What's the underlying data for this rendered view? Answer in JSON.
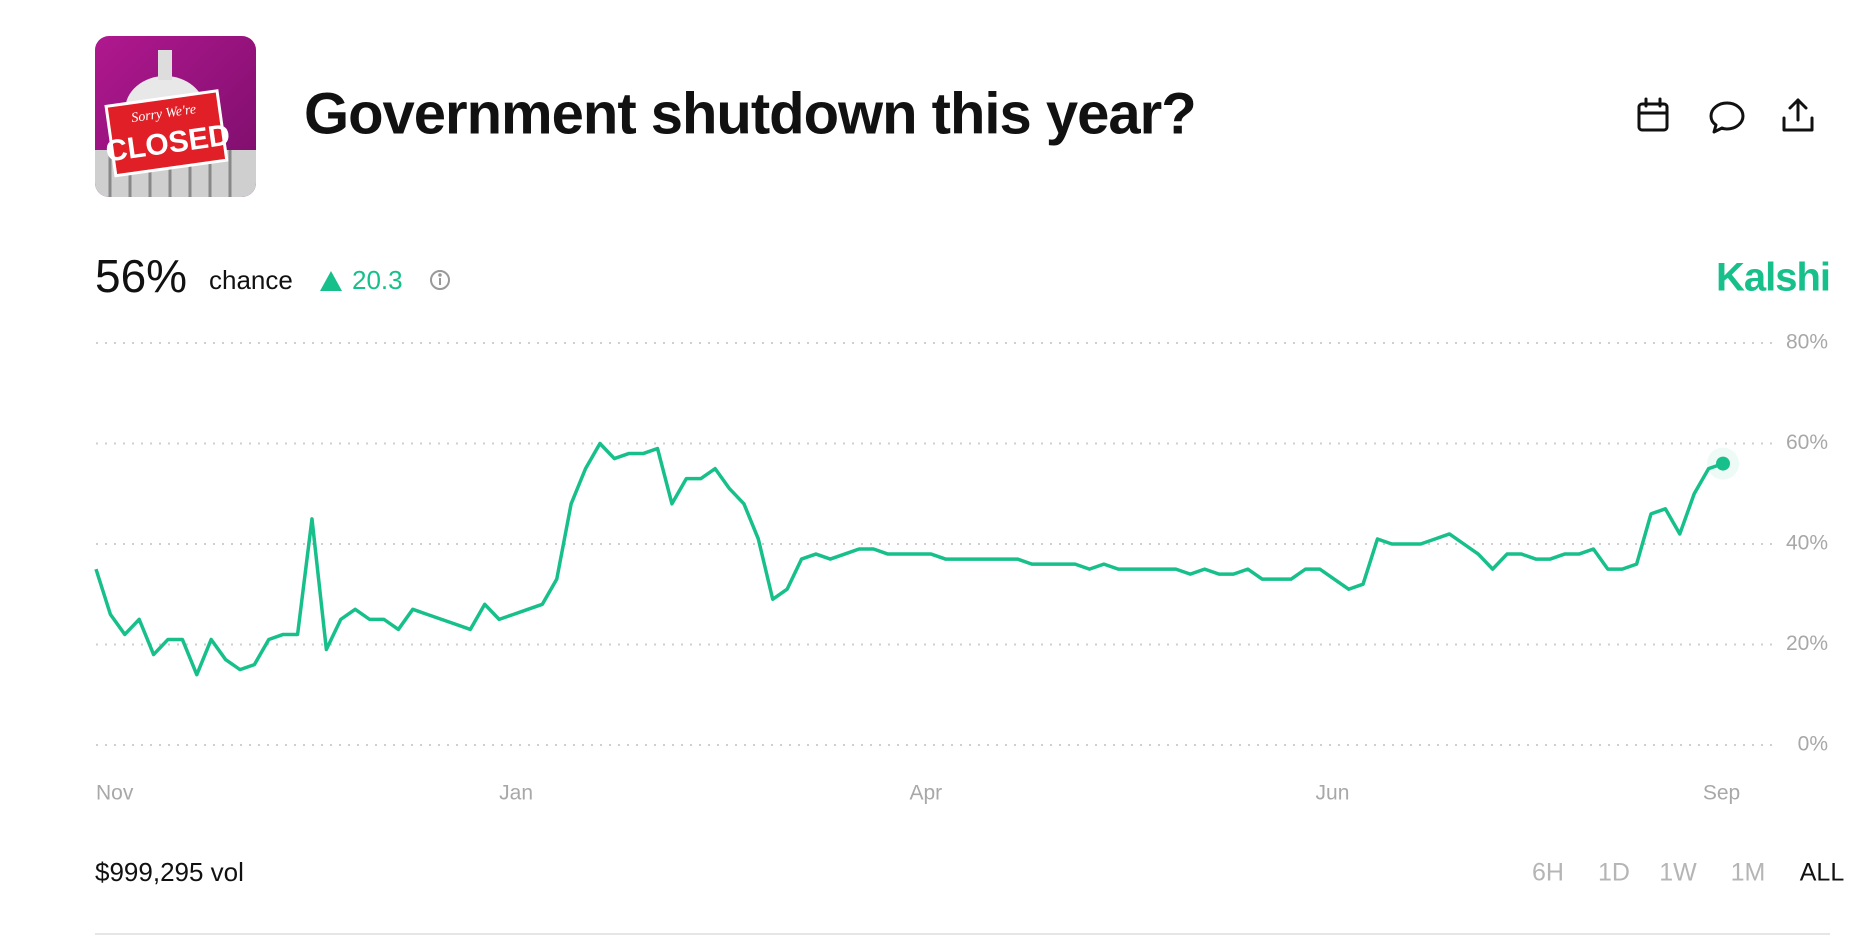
{
  "header": {
    "title": "Government shutdown this year?",
    "image_sign": [
      "Sorry We're",
      "CLOSED"
    ]
  },
  "summary": {
    "chance": "56%",
    "chance_label": "chance",
    "change": "20.3",
    "source": "Kalshi"
  },
  "footer": {
    "volume": "$999,295 vol",
    "ranges": [
      "6H",
      "1D",
      "1W",
      "1M",
      "ALL"
    ]
  },
  "chart_data": {
    "type": "line",
    "color": "#17c08a",
    "values": [
      35,
      26,
      22,
      25,
      18,
      21,
      21,
      14,
      21,
      17,
      15,
      16,
      21,
      22,
      22,
      45,
      19,
      25,
      27,
      25,
      25,
      23,
      27,
      26,
      25,
      24,
      23,
      28,
      25,
      26,
      27,
      28,
      33,
      48,
      55,
      60,
      57,
      58,
      58,
      59,
      48,
      53,
      53,
      55,
      51,
      48,
      41,
      29,
      31,
      37,
      38,
      37,
      38,
      39,
      39,
      38,
      38,
      38,
      38,
      37,
      37,
      37,
      37,
      37,
      37,
      36,
      36,
      36,
      36,
      35,
      36,
      35,
      35,
      35,
      35,
      35,
      34,
      35,
      34,
      34,
      35,
      33,
      33,
      33,
      35,
      35,
      33,
      31,
      32,
      41,
      40,
      40,
      40,
      41,
      42,
      40,
      38,
      35,
      38,
      38,
      37,
      37,
      38,
      38,
      39,
      35,
      35,
      36,
      46,
      47,
      42,
      50,
      55,
      56
    ],
    "xlim": [
      0,
      113
    ],
    "xticks": [
      {
        "value": 0,
        "label": "Nov"
      },
      {
        "value": 28,
        "label": "Jan"
      },
      {
        "value": 56.5,
        "label": "Apr"
      },
      {
        "value": 84.7,
        "label": "Jun"
      },
      {
        "value": 111.6,
        "label": "Sep"
      }
    ],
    "ylim": [
      0,
      80
    ],
    "yticks": [
      {
        "value": 0,
        "label": "0%"
      },
      {
        "value": 20,
        "label": "20%"
      },
      {
        "value": 40,
        "label": "40%"
      },
      {
        "value": 60,
        "label": "60%"
      },
      {
        "value": 80,
        "label": "80%"
      }
    ],
    "grid": true
  }
}
